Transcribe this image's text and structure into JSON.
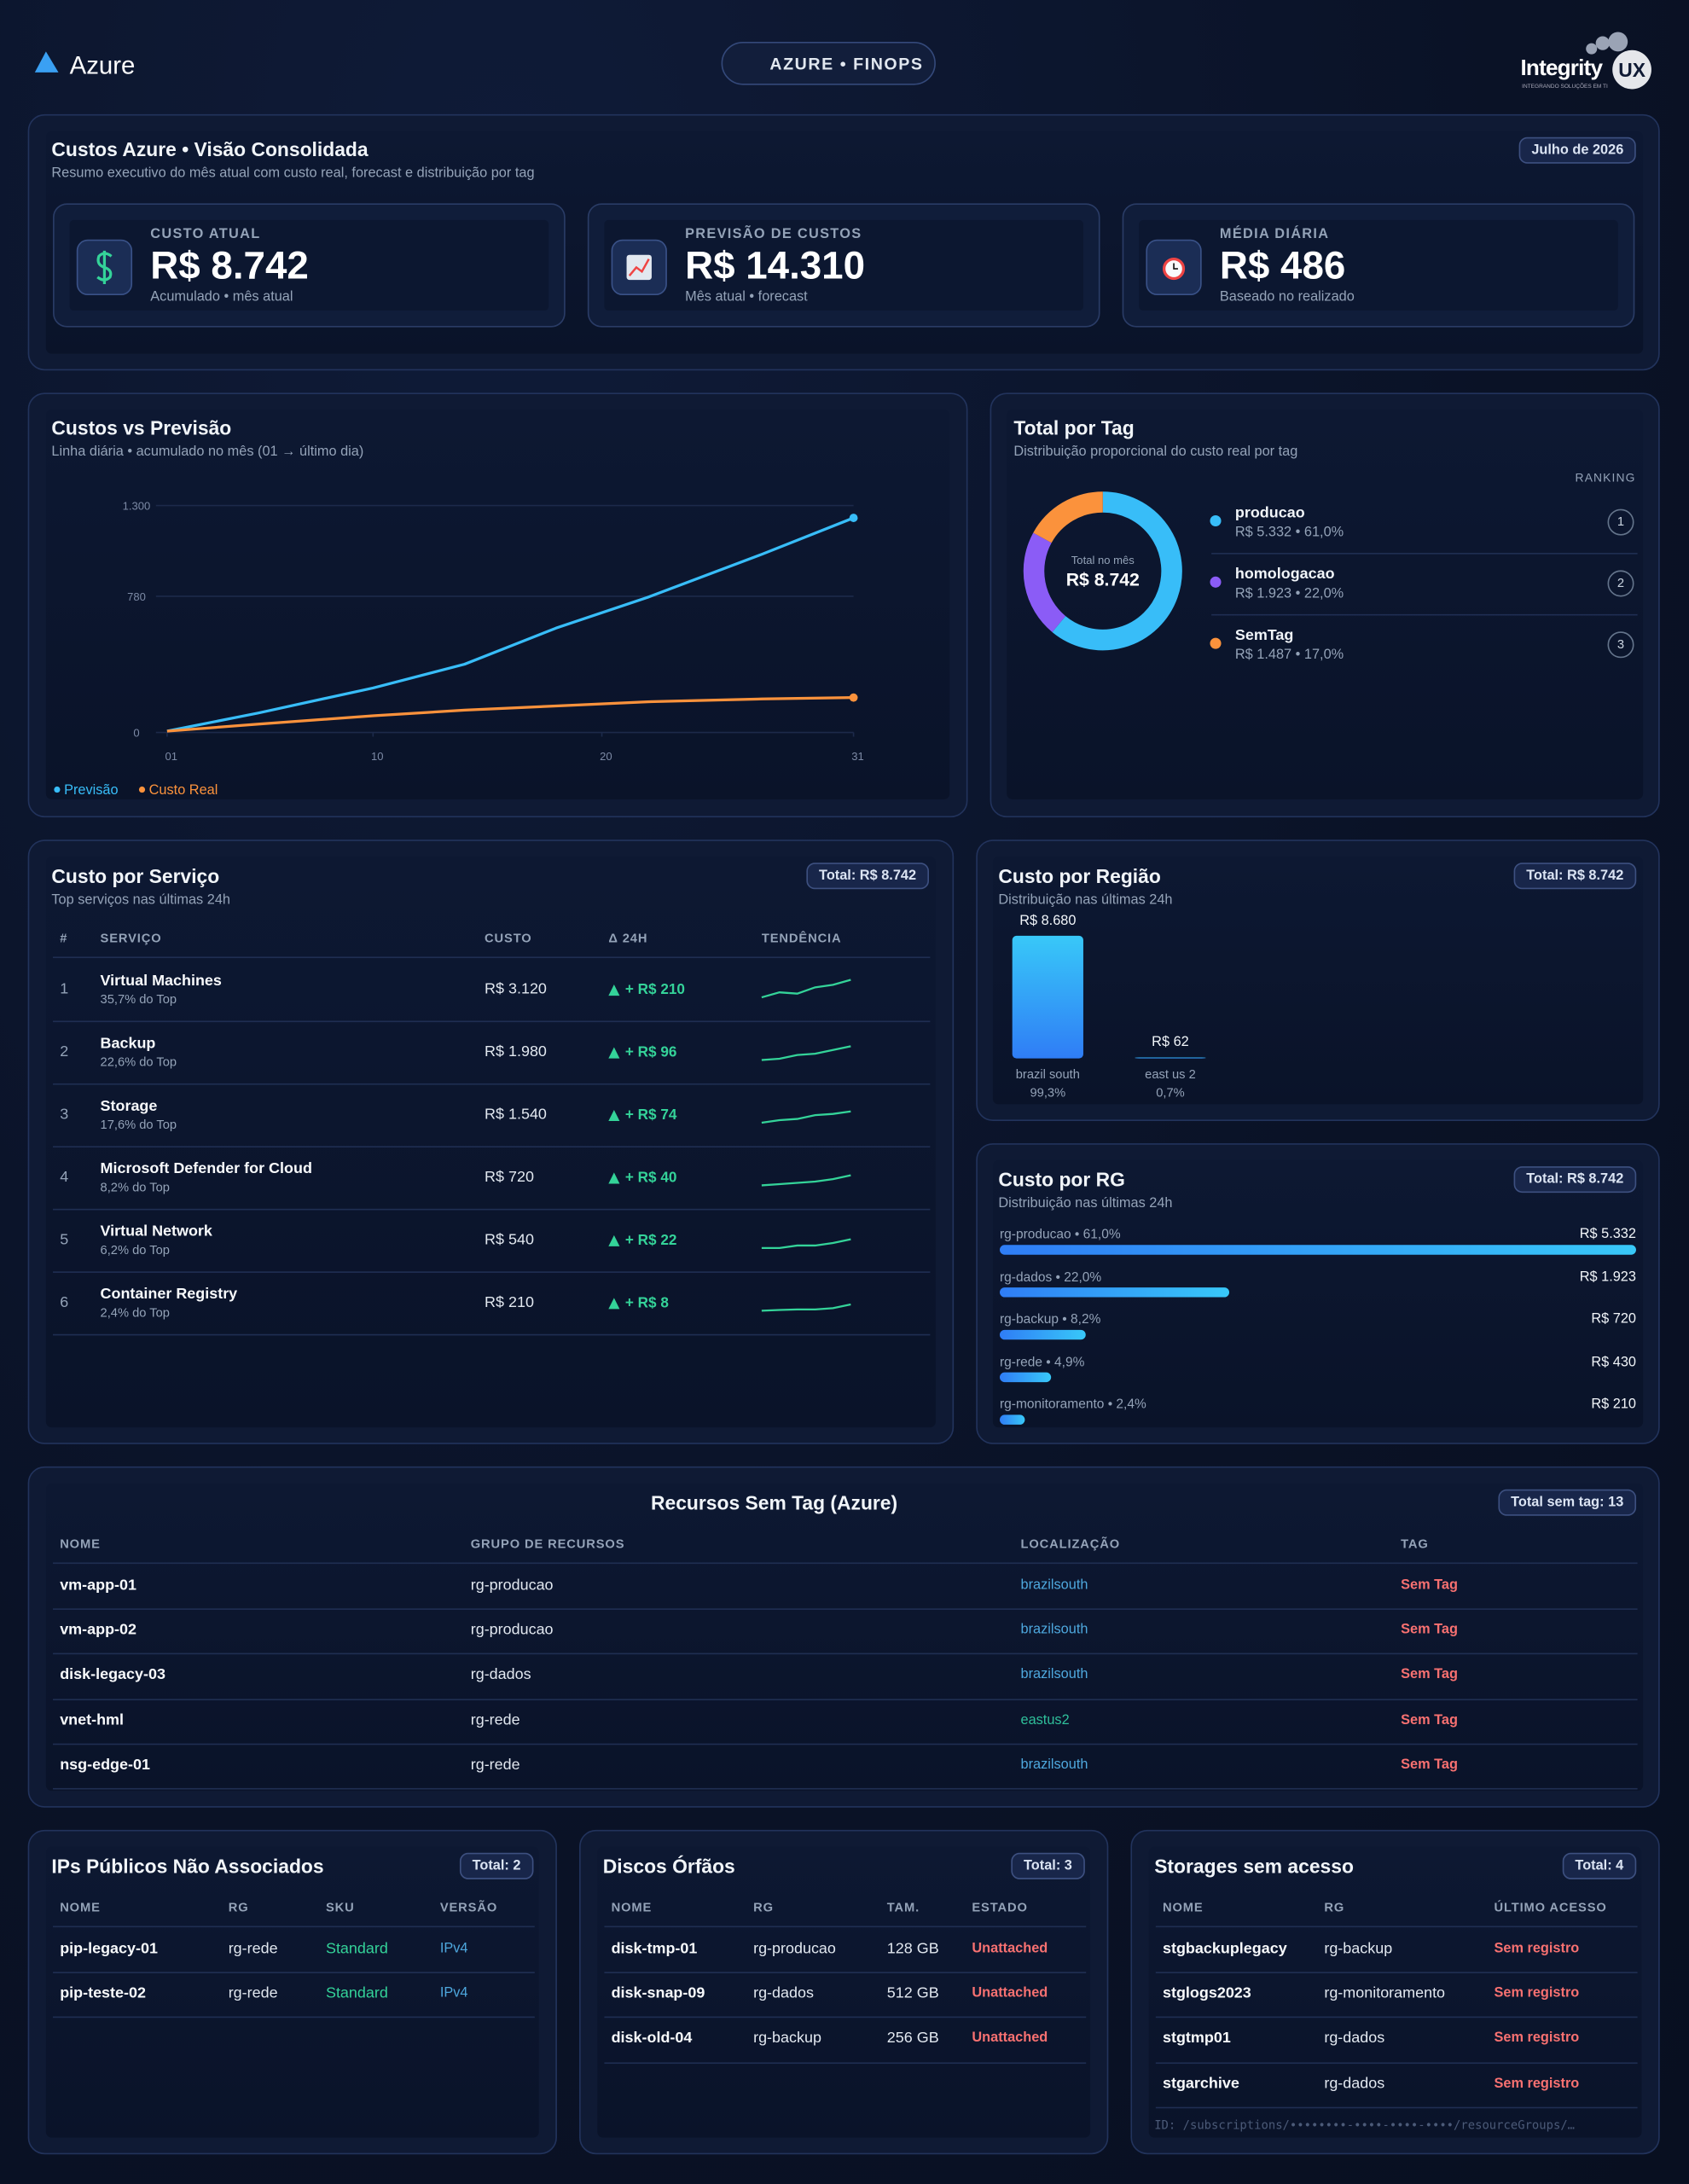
{
  "header": {
    "logo": "Azure",
    "badge": "AZURE • FINOPS",
    "brand": "Integrity",
    "brand_mark": "UX",
    "brand_tagline": "INTEGRANDO SOLUÇÕES EM TI"
  },
  "summary": {
    "title": "Custos Azure • Visão Consolidada",
    "subtitle": "Resumo executivo do mês atual com custo real, forecast e distribuição por tag",
    "period": "Julho de 2026",
    "kpis": [
      {
        "label": "CUSTO ATUAL",
        "value": "R$ 8.742",
        "note": "Acumulado • mês atual"
      },
      {
        "label": "PREVISÃO DE CUSTOS",
        "value": "R$ 14.310",
        "note": "Mês atual • forecast"
      },
      {
        "label": "MÉDIA DIÁRIA",
        "value": "R$ 486",
        "note": "Baseado no realizado"
      }
    ]
  },
  "cost_chart": {
    "type": "line",
    "title": "Custos vs Previsão",
    "subtitle": "Linha diária • acumulado no mês (01 → último dia)",
    "x": [
      1,
      5,
      10,
      14,
      18,
      22,
      27,
      31
    ],
    "xlim": [
      1,
      31
    ],
    "xticks": [
      {
        "value": 1,
        "label": "01"
      },
      10,
      20,
      31
    ],
    "ylim": [
      0,
      1300
    ],
    "yticks": [
      0,
      780,
      {
        "value": 1300,
        "label": "1.300"
      }
    ],
    "grid": true,
    "series": [
      {
        "name": "Previsão",
        "color": "#38bdf8",
        "values": [
          8,
          112,
          255,
          391,
          598,
          774,
          1021,
          1229
        ]
      },
      {
        "name": "Custo Real",
        "color": "#fb923c",
        "values": [
          8,
          48,
          96,
          128,
          152,
          176,
          192,
          200
        ]
      }
    ]
  },
  "tag_chart": {
    "type": "donut",
    "title": "Total por Tag",
    "subtitle": "Distribuição proporcional do custo real por tag",
    "center_label": "Total no mês",
    "center_value": "R$ 8.742",
    "ranking_label": "RANKING",
    "categories": [
      "producao",
      "homologacao",
      "SemTag"
    ],
    "values": [
      5332,
      1923,
      1487
    ],
    "value_labels": [
      "R$ 5.332 • 61,0%",
      "R$ 1.923 • 22,0%",
      "R$ 1.487 • 17,0%"
    ],
    "colors": [
      "#38bdf8",
      "#8b5cf6",
      "#fb923c"
    ],
    "ranks": [
      1,
      2,
      3
    ]
  },
  "services": {
    "title": "Custo por Serviço",
    "subtitle": "Top serviços nas últimas 24h",
    "total": "Total: R$ 8.742",
    "columns": [
      "#",
      "SERVIÇO",
      "CUSTO",
      "Δ 24H",
      "TENDÊNCIA"
    ],
    "rows": [
      {
        "rank": 1,
        "name": "Virtual Machines",
        "share": "35,7% do Top",
        "cost": "R$ 3.120",
        "delta": "+ R$ 210",
        "trend": [
          1,
          3,
          2.5,
          5,
          6,
          8
        ]
      },
      {
        "rank": 2,
        "name": "Backup",
        "share": "22,6% do Top",
        "cost": "R$ 1.980",
        "delta": "+ R$ 96",
        "trend": [
          1,
          1.5,
          3,
          3.5,
          5,
          6.5
        ]
      },
      {
        "rank": 3,
        "name": "Storage",
        "share": "17,6% do Top",
        "cost": "R$ 1.540",
        "delta": "+ R$ 74",
        "trend": [
          1,
          2,
          2.5,
          4,
          4.5,
          5.5
        ]
      },
      {
        "rank": 4,
        "name": "Microsoft Defender for Cloud",
        "share": "8,2% do Top",
        "cost": "R$ 720",
        "delta": "+ R$ 40",
        "trend": [
          1,
          1.5,
          2,
          2.5,
          3.5,
          5
        ]
      },
      {
        "rank": 5,
        "name": "Virtual Network",
        "share": "6,2% do Top",
        "cost": "R$ 540",
        "delta": "+ R$ 22",
        "trend": [
          1,
          1,
          2,
          2,
          3,
          4.5
        ]
      },
      {
        "rank": 6,
        "name": "Container Registry",
        "share": "2,4% do Top",
        "cost": "R$ 210",
        "delta": "+ R$ 8",
        "trend": [
          1,
          1.3,
          1.5,
          1.5,
          2,
          3.5
        ]
      }
    ]
  },
  "regions": {
    "type": "bar",
    "title": "Custo por Região",
    "subtitle": "Distribuição nas últimas 24h",
    "total": "Total: R$ 8.742",
    "categories": [
      "brazil south",
      "east us 2"
    ],
    "values": [
      8680,
      62
    ],
    "value_labels": [
      "R$ 8.680",
      "R$ 62"
    ],
    "shares": [
      "99,3%",
      "0,7%"
    ]
  },
  "resource_groups": {
    "type": "bar",
    "title": "Custo por RG",
    "subtitle": "Distribuição nas últimas 24h",
    "total": "Total: R$ 8.742",
    "categories": [
      "rg-producao • 61,0%",
      "rg-dados • 22,0%",
      "rg-backup • 8,2%",
      "rg-rede • 4,9%",
      "rg-monitoramento • 2,4%"
    ],
    "values": [
      5332,
      1923,
      720,
      430,
      210
    ],
    "value_labels": [
      "R$ 5.332",
      "R$ 1.923",
      "R$ 720",
      "R$ 430",
      "R$ 210"
    ]
  },
  "untagged": {
    "title": "Recursos Sem Tag (Azure)",
    "total": "Total sem tag: 13",
    "columns": [
      "NOME",
      "GRUPO DE RECURSOS",
      "LOCALIZAÇÃO",
      "TAG"
    ],
    "rows": [
      [
        "vm-app-01",
        "rg-producao",
        "brazilsouth",
        "Sem Tag"
      ],
      [
        "vm-app-02",
        "rg-producao",
        "brazilsouth",
        "Sem Tag"
      ],
      [
        "disk-legacy-03",
        "rg-dados",
        "brazilsouth",
        "Sem Tag"
      ],
      [
        "vnet-hml",
        "rg-rede",
        "eastus2",
        "Sem Tag"
      ],
      [
        "nsg-edge-01",
        "rg-rede",
        "brazilsouth",
        "Sem Tag"
      ]
    ]
  },
  "public_ips": {
    "title": "IPs Públicos Não Associados",
    "total": "Total: 2",
    "columns": [
      "NOME",
      "RG",
      "SKU",
      "VERSÃO"
    ],
    "rows": [
      [
        "pip-legacy-01",
        "rg-rede",
        "Standard",
        "IPv4"
      ],
      [
        "pip-teste-02",
        "rg-rede",
        "Standard",
        "IPv4"
      ]
    ]
  },
  "orphan_disks": {
    "title": "Discos Órfãos",
    "total": "Total: 3",
    "columns": [
      "NOME",
      "RG",
      "TAM.",
      "ESTADO"
    ],
    "rows": [
      [
        "disk-tmp-01",
        "rg-producao",
        "128 GB",
        "Unattached"
      ],
      [
        "disk-snap-09",
        "rg-dados",
        "512 GB",
        "Unattached"
      ],
      [
        "disk-old-04",
        "rg-backup",
        "256 GB",
        "Unattached"
      ]
    ]
  },
  "idle_storage": {
    "title": "Storages sem acesso",
    "total": "Total: 4",
    "columns": [
      "NOME",
      "RG",
      "ÚLTIMO ACESSO"
    ],
    "rows": [
      [
        "stgbackuplegacy",
        "rg-backup",
        "Sem registro"
      ],
      [
        "stglogs2023",
        "rg-monitoramento",
        "Sem registro"
      ],
      [
        "stgtmp01",
        "rg-dados",
        "Sem registro"
      ],
      [
        "stgarchive",
        "rg-dados",
        "Sem registro"
      ]
    ],
    "footer": "ID: /subscriptions/••••••••-••••-••••-••••/resourceGroups/…"
  }
}
